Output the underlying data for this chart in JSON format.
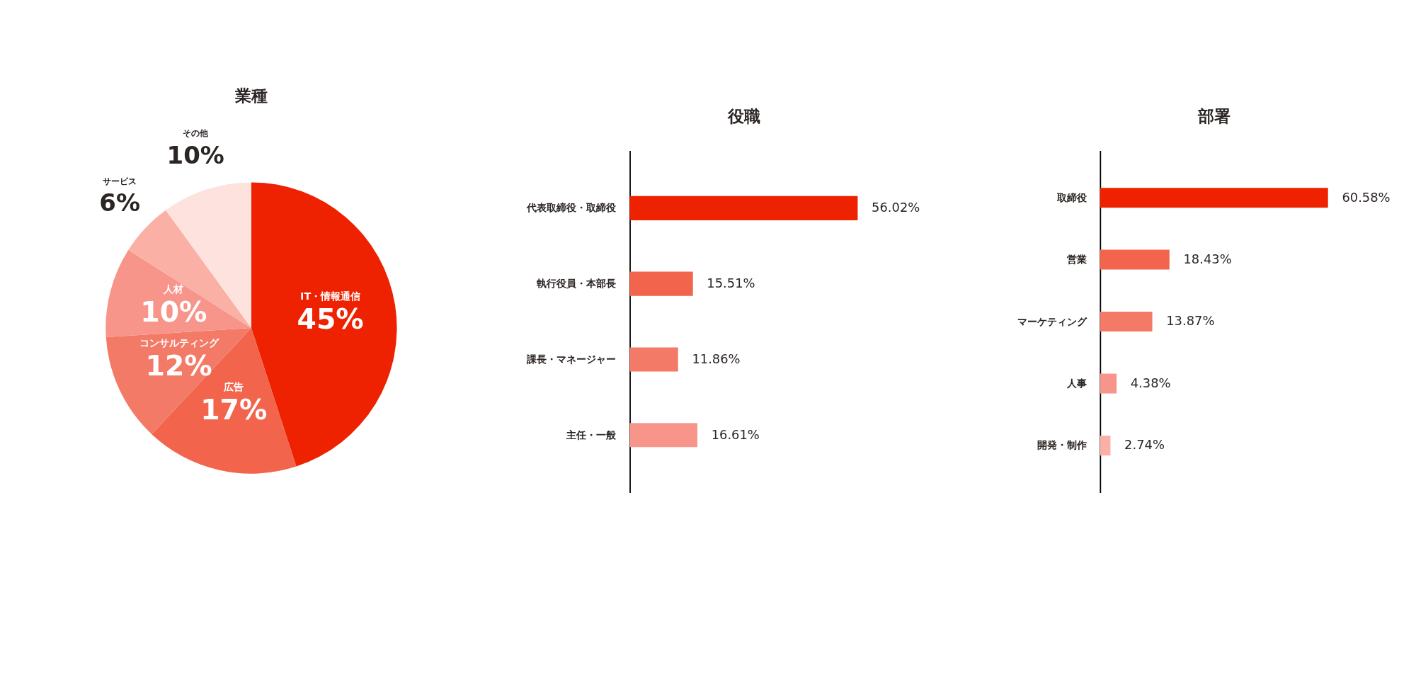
{
  "chart_data": [
    {
      "type": "pie",
      "title": "業種",
      "categories": [
        "IT・情報通信",
        "広告",
        "コンサルティング",
        "人材",
        "サービス",
        "その他"
      ],
      "values": [
        45,
        17,
        12,
        10,
        6,
        10
      ],
      "colors": [
        "#ee2200",
        "#f2644c",
        "#f47a68",
        "#f7958a",
        "#fbb0a6",
        "#fde2de"
      ],
      "value_labels": [
        "45%",
        "17%",
        "12%",
        "10%",
        "6%",
        "10%"
      ]
    },
    {
      "type": "bar",
      "orientation": "horizontal",
      "title": "役職",
      "categories": [
        "代表取締役・取締役",
        "執行役員・本部長",
        "課長・マネージャー",
        "主任・一般"
      ],
      "values": [
        56.02,
        15.51,
        11.86,
        16.61
      ],
      "colors": [
        "#ee2200",
        "#f2644c",
        "#f47a68",
        "#f7958a"
      ],
      "value_labels": [
        "56.02%",
        "15.51%",
        "11.86%",
        "16.61%"
      ]
    },
    {
      "type": "bar",
      "orientation": "horizontal",
      "title": "部署",
      "categories": [
        "取締役",
        "営業",
        "マーケティング",
        "人事",
        "開発・制作"
      ],
      "values": [
        60.58,
        18.43,
        13.87,
        4.38,
        2.74
      ],
      "colors": [
        "#ee2200",
        "#f2644c",
        "#f47a68",
        "#f7958a",
        "#fbb0a6"
      ],
      "value_labels": [
        "60.58%",
        "18.43%",
        "13.87%",
        "4.38%",
        "2.74%"
      ]
    }
  ]
}
